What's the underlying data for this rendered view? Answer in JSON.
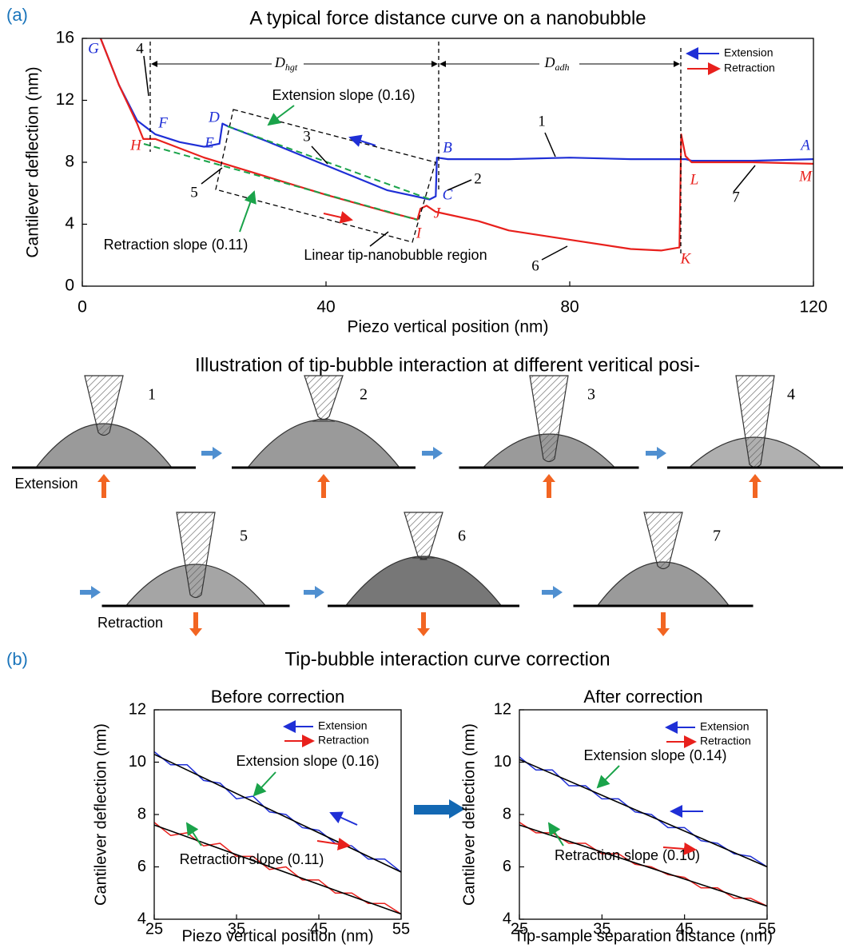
{
  "panel_labels": [
    "(a)",
    "(b)"
  ],
  "section_b_title": "Tip-bubble interaction curve correction",
  "illustration": {
    "title": "Illustration of tip-bubble interaction at different veritical posi-",
    "extension_label": "Extension",
    "retraction_label": "Retraction",
    "steps": [
      "1",
      "2",
      "3",
      "4",
      "5",
      "6",
      "7"
    ]
  },
  "chart_data": [
    {
      "type": "line",
      "title": "A typical force distance curve on a nanobubble",
      "xlabel": "Piezo vertical position (nm)",
      "ylabel": "Cantilever deflection (nm)",
      "xlim": [
        0,
        120
      ],
      "ylim": [
        0,
        16
      ],
      "xticks": [
        0,
        40,
        80,
        120
      ],
      "yticks": [
        0,
        4,
        8,
        12,
        16
      ],
      "series": [
        {
          "name": "Extension",
          "color": "#1f2fd6",
          "x": [
            3,
            6,
            9,
            12,
            16,
            20,
            22.5,
            23,
            24,
            30,
            40,
            50,
            57,
            58,
            58.2,
            60,
            70,
            80,
            90,
            98,
            99,
            100,
            110,
            120
          ],
          "values": [
            16,
            13,
            10.7,
            9.8,
            9.3,
            9.0,
            9.2,
            10.5,
            10.3,
            9.4,
            7.8,
            6.2,
            5.6,
            5.8,
            8.3,
            8.2,
            8.2,
            8.3,
            8.2,
            8.2,
            8.2,
            8.1,
            8.1,
            8.2
          ]
        },
        {
          "name": "Retraction",
          "color": "#e8201c",
          "x": [
            3,
            6,
            9,
            10,
            12,
            20,
            30,
            40,
            50,
            55,
            55.5,
            56.5,
            58,
            65,
            70,
            80,
            90,
            95,
            98,
            98.3,
            99,
            100,
            110,
            120
          ],
          "values": [
            16,
            13,
            10.5,
            9.5,
            9.5,
            8.3,
            7.1,
            5.9,
            4.8,
            4.3,
            5.0,
            5.2,
            4.8,
            4.2,
            3.6,
            3.0,
            2.4,
            2.3,
            2.5,
            9.8,
            8.4,
            8.0,
            8.0,
            7.9
          ]
        }
      ],
      "annotations": [
        "A",
        "B",
        "C",
        "D",
        "E",
        "F",
        "G",
        "H",
        "I",
        "J",
        "K",
        "L",
        "M",
        "1",
        "2",
        "3",
        "4",
        "5",
        "6",
        "7",
        "Extension slope (0.16)",
        "Retraction slope (0.11)",
        "Linear tip-nanobubble region",
        {
          "text": "D",
          "sub": "hgt"
        },
        {
          "text": "D",
          "sub": "adh"
        }
      ]
    },
    {
      "type": "line",
      "title": "Before correction",
      "xlabel": "Piezo vertical position (nm)",
      "ylabel": "Cantilever deflection (nm)",
      "xlim": [
        25,
        55
      ],
      "ylim": [
        4,
        12
      ],
      "xticks": [
        25,
        35,
        45,
        55
      ],
      "yticks": [
        4,
        6,
        8,
        10,
        12
      ],
      "series": [
        {
          "name": "Extension",
          "color": "#1f2fd6",
          "x": [
            25,
            27,
            29,
            31,
            33,
            35,
            37,
            39,
            41,
            43,
            45,
            47,
            49,
            51,
            53,
            55
          ],
          "values": [
            10.4,
            9.9,
            9.9,
            9.3,
            9.2,
            8.6,
            8.7,
            8.1,
            8.0,
            7.5,
            7.4,
            6.9,
            6.8,
            6.3,
            6.3,
            5.8
          ]
        },
        {
          "name": "Retraction",
          "color": "#e8201c",
          "x": [
            25,
            27,
            29,
            31,
            33,
            35,
            37,
            39,
            41,
            43,
            45,
            47,
            49,
            51,
            53,
            55
          ],
          "values": [
            7.7,
            7.2,
            7.3,
            6.8,
            6.9,
            6.4,
            6.4,
            5.9,
            6.0,
            5.5,
            5.5,
            5.0,
            5.0,
            4.6,
            4.6,
            4.2
          ]
        },
        {
          "color": "#000000",
          "x": [
            25,
            55
          ],
          "values": [
            10.3,
            5.8
          ]
        },
        {
          "color": "#000000",
          "x": [
            25,
            55
          ],
          "values": [
            7.6,
            4.2
          ]
        }
      ],
      "annotations": [
        "Extension slope (0.16)",
        "Retraction slope (0.11)"
      ]
    },
    {
      "type": "line",
      "title": "After correction",
      "xlabel": "Tip-sample separation distance (nm)",
      "ylabel": "Cantilever deflection (nm)",
      "xlim": [
        25,
        55
      ],
      "ylim": [
        4,
        12
      ],
      "xticks": [
        25,
        35,
        45,
        55
      ],
      "yticks": [
        4,
        6,
        8,
        10,
        12
      ],
      "series": [
        {
          "name": "Extension",
          "color": "#1f2fd6",
          "x": [
            25,
            27,
            29,
            31,
            33,
            35,
            37,
            39,
            41,
            43,
            45,
            47,
            49,
            51,
            53,
            55
          ],
          "values": [
            10.2,
            9.7,
            9.7,
            9.1,
            9.1,
            8.6,
            8.6,
            8.1,
            8.0,
            7.5,
            7.5,
            7.0,
            6.9,
            6.5,
            6.4,
            6.0
          ]
        },
        {
          "name": "Retraction",
          "color": "#e8201c",
          "x": [
            25,
            27,
            29,
            31,
            33,
            35,
            37,
            39,
            41,
            43,
            45,
            47,
            49,
            51,
            53,
            55
          ],
          "values": [
            7.7,
            7.3,
            7.3,
            6.9,
            6.9,
            6.5,
            6.5,
            6.1,
            6.0,
            5.7,
            5.6,
            5.2,
            5.2,
            4.8,
            4.8,
            4.5
          ]
        },
        {
          "color": "#000000",
          "x": [
            25,
            55
          ],
          "values": [
            10.1,
            6.0
          ]
        },
        {
          "color": "#000000",
          "x": [
            25,
            55
          ],
          "values": [
            7.6,
            4.5
          ]
        }
      ],
      "annotations": [
        "Extension slope (0.14)",
        "Retraction slope (0.10)"
      ]
    }
  ]
}
